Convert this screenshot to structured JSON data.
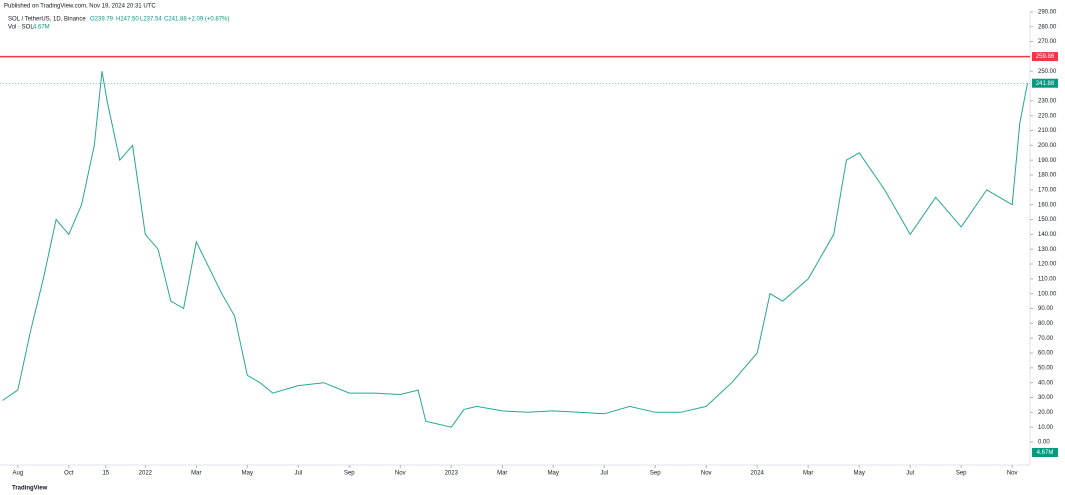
{
  "chart_data": {
    "type": "line",
    "published": "Published on TradingView.com, Nov 19, 2024 20:31 UTC",
    "title": "SOL / TetherUS, 1D, Binance",
    "ohlc": {
      "open": "O239.79",
      "high": "H247.50",
      "low": "L237.54",
      "close": "C241.88",
      "change": "+2.09 (+0.87%)"
    },
    "volume_label": "Vol · SOL",
    "volume_value": "4.67M",
    "brand": "TradingView",
    "series": [
      {
        "name": "SOL / TetherUS",
        "color": "#26a69a",
        "x": [
          6.4,
          7,
          7.5,
          8,
          8.5,
          9,
          9.5,
          10,
          10.3,
          10.5,
          11,
          11.5,
          12,
          12.5,
          13,
          13.5,
          14,
          15,
          15.5,
          16,
          16.5,
          17,
          18,
          19,
          20,
          21,
          22,
          22.7,
          23,
          24,
          24.5,
          25,
          26,
          27,
          28,
          29,
          30,
          31,
          32,
          33,
          34,
          35,
          36,
          36.5,
          37,
          38,
          39,
          39.5,
          40,
          41,
          42,
          43,
          44,
          45,
          46,
          46.3,
          46.6
        ],
        "values": [
          28,
          35,
          75,
          110,
          150,
          140,
          160,
          200,
          250,
          230,
          190,
          200,
          140,
          130,
          95,
          90,
          135,
          100,
          85,
          45,
          40,
          33,
          38,
          40,
          33,
          33,
          32,
          35,
          14,
          10,
          22,
          24,
          21,
          20,
          21,
          20,
          19,
          24,
          20,
          20,
          24,
          40,
          60,
          100,
          95,
          110,
          140,
          190,
          195,
          170,
          140,
          165,
          145,
          170,
          160,
          215,
          241.88
        ]
      }
    ],
    "price_lines": [
      {
        "value": 259.86,
        "label": "259.86",
        "color": "#f23645"
      },
      {
        "value": 241.88,
        "label": "241.88",
        "color": "#089981"
      }
    ],
    "xlim": [
      6.3,
      46.7
    ],
    "xticks": [
      {
        "value": 7,
        "label": "Aug"
      },
      {
        "value": 9,
        "label": "Oct"
      },
      {
        "value": 10.45,
        "label": "15"
      },
      {
        "value": 12,
        "label": "2022"
      },
      {
        "value": 14,
        "label": "Mar"
      },
      {
        "value": 16,
        "label": "May"
      },
      {
        "value": 18,
        "label": "Jul"
      },
      {
        "value": 20,
        "label": "Sep"
      },
      {
        "value": 22,
        "label": "Nov"
      },
      {
        "value": 24,
        "label": "2023"
      },
      {
        "value": 26,
        "label": "Mar"
      },
      {
        "value": 28,
        "label": "May"
      },
      {
        "value": 30,
        "label": "Jul"
      },
      {
        "value": 32,
        "label": "Sep"
      },
      {
        "value": 34,
        "label": "Nov"
      },
      {
        "value": 36,
        "label": "2024"
      },
      {
        "value": 38,
        "label": "Mar"
      },
      {
        "value": 40,
        "label": "May"
      },
      {
        "value": 42,
        "label": "Jul"
      },
      {
        "value": 44,
        "label": "Sep"
      },
      {
        "value": 46,
        "label": "Nov"
      }
    ],
    "ylim": [
      -15.5,
      298
    ],
    "yticks": [
      {
        "value": 0,
        "label": "0.00"
      },
      {
        "value": 10,
        "label": "10.00"
      },
      {
        "value": 20,
        "label": "20.00"
      },
      {
        "value": 30,
        "label": "30.00"
      },
      {
        "value": 40,
        "label": "40.00"
      },
      {
        "value": 50,
        "label": "50.00"
      },
      {
        "value": 60,
        "label": "60.00"
      },
      {
        "value": 70,
        "label": "70.00"
      },
      {
        "value": 80,
        "label": "80.00"
      },
      {
        "value": 90,
        "label": "90.00"
      },
      {
        "value": 100,
        "label": "100.00"
      },
      {
        "value": 110,
        "label": "110.00"
      },
      {
        "value": 120,
        "label": "120.00"
      },
      {
        "value": 130,
        "label": "130.00"
      },
      {
        "value": 140,
        "label": "140.00"
      },
      {
        "value": 150,
        "label": "150.00"
      },
      {
        "value": 160,
        "label": "160.00"
      },
      {
        "value": 170,
        "label": "170.00"
      },
      {
        "value": 180,
        "label": "180.00"
      },
      {
        "value": 190,
        "label": "190.00"
      },
      {
        "value": 200,
        "label": "200.00"
      },
      {
        "value": 210,
        "label": "210.00"
      },
      {
        "value": 220,
        "label": "220.00"
      },
      {
        "value": 230,
        "label": "230.00"
      },
      {
        "value": 250,
        "label": "250.00"
      },
      {
        "value": 270,
        "label": "270.00"
      },
      {
        "value": 280,
        "label": "280.00"
      },
      {
        "value": 290,
        "label": "290.00"
      }
    ]
  }
}
